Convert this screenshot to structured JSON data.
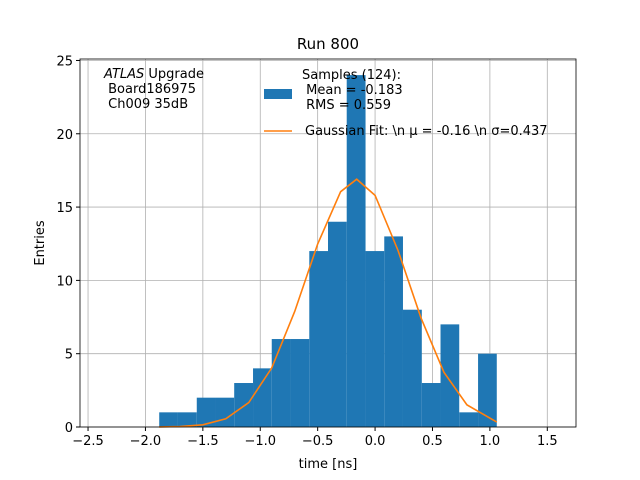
{
  "chart_data": {
    "type": "histogram",
    "title": "Run 800",
    "x_label": "time [ns]",
    "y_label": "Entries",
    "bins": [
      -1.88,
      -1.717,
      -1.553,
      -1.39,
      -1.227,
      -1.063,
      -0.9,
      -0.737,
      -0.573,
      -0.41,
      -0.247,
      -0.083,
      0.08,
      0.243,
      0.407,
      0.57,
      0.733,
      0.897,
      1.06
    ],
    "series": [
      {
        "name": "Samples (124):\n Mean = -0.183\n RMS = 0.559",
        "color": "#1f77b4",
        "values": [
          1,
          1,
          2,
          2,
          3,
          4,
          6,
          6,
          12,
          14,
          24,
          12,
          13,
          8,
          3,
          7,
          1,
          5
        ]
      },
      {
        "name": "Gaussian Fit: \\n μ = -0.16 \\n σ=0.437",
        "type": "line",
        "color": "#ff7f0e",
        "x": [
          -1.88,
          -1.7,
          -1.5,
          -1.3,
          -1.1,
          -0.9,
          -0.7,
          -0.5,
          -0.3,
          -0.16,
          0,
          0.2,
          0.4,
          0.6,
          0.8,
          1.06
        ],
        "values": [
          0.007,
          0.034,
          0.15,
          0.56,
          1.67,
          4.03,
          7.88,
          12.48,
          16.05,
          16.9,
          15.8,
          12.04,
          7.44,
          3.73,
          1.51,
          0.34
        ]
      }
    ],
    "annotation": {
      "emphasis": "ATLAS",
      "text": " Upgrade\n Board186975\n Ch009 35dB"
    },
    "xlim": [
      -2.57,
      1.75
    ],
    "ylim": [
      0,
      25.1
    ],
    "xticks": [
      {
        "value": -2.5,
        "label": "−2.5"
      },
      {
        "value": -2.0,
        "label": "−2.0"
      },
      {
        "value": -1.5,
        "label": "−1.5"
      },
      {
        "value": -1.0,
        "label": "−1.0"
      },
      {
        "value": -0.5,
        "label": "−0.5"
      },
      {
        "value": 0,
        "label": "0.0"
      },
      {
        "value": 0.5,
        "label": "0.5"
      },
      {
        "value": 1.0,
        "label": "1.0"
      },
      {
        "value": 1.5,
        "label": "1.5"
      }
    ],
    "yticks": [
      0,
      5,
      10,
      15,
      20,
      25
    ],
    "grid": true,
    "legend": "upper center"
  }
}
